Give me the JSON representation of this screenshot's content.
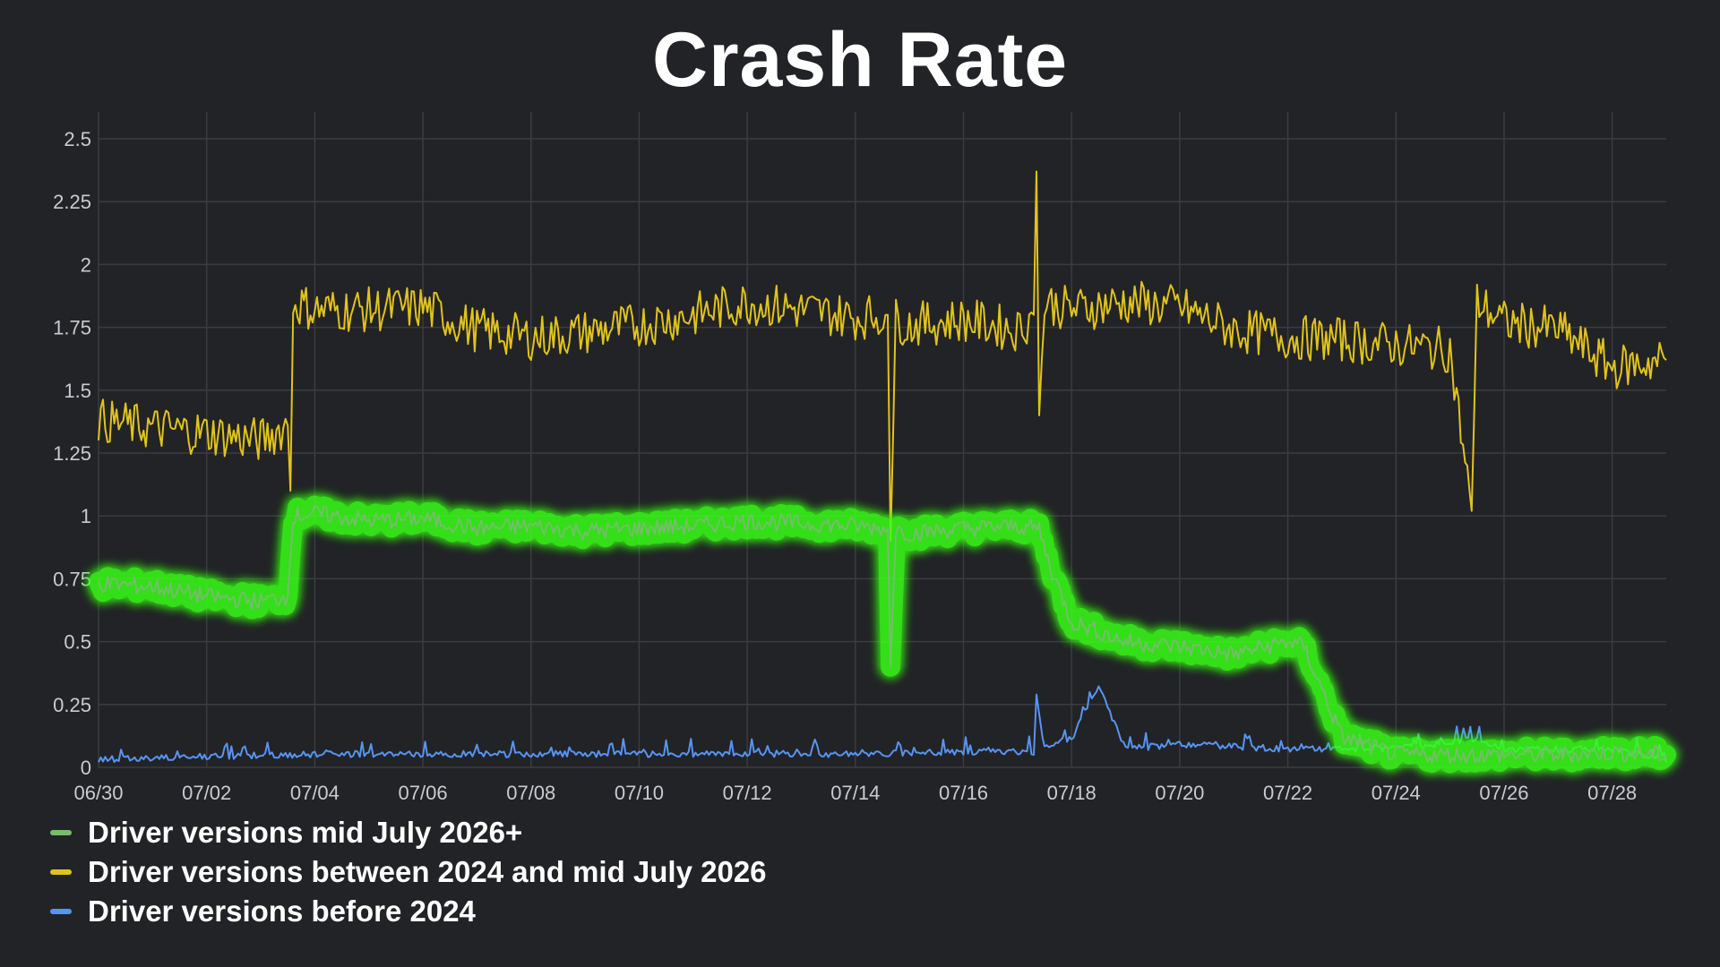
{
  "title": "Crash Rate",
  "chart_data": {
    "type": "line",
    "title": "Crash Rate",
    "xlabel": "",
    "ylabel": "",
    "ylim": [
      0,
      2.5
    ],
    "yticks": [
      "0",
      "0.25",
      "0.5",
      "0.75",
      "1",
      "1.25",
      "1.5",
      "1.75",
      "2",
      "2.25",
      "2.5"
    ],
    "xlim": [
      "2025-06-30",
      "2025-07-29"
    ],
    "xticks": [
      "06/30",
      "07/02",
      "07/04",
      "07/06",
      "07/08",
      "07/10",
      "07/12",
      "07/14",
      "07/16",
      "07/18",
      "07/20",
      "07/22",
      "07/24",
      "07/26",
      "07/28"
    ],
    "grid": true,
    "legend_position": "bottom-left",
    "series": [
      {
        "name": "Driver versions mid July 2026+",
        "color": "#73bf69",
        "highlight": "#39ff14",
        "points": [
          [
            "06-30",
            0.73
          ],
          [
            "07-01",
            0.72
          ],
          [
            "07-02",
            0.68
          ],
          [
            "07-03",
            0.66
          ],
          [
            "07-03.5",
            0.68
          ],
          [
            "07-03.6",
            1.0
          ],
          [
            "07-04",
            1.01
          ],
          [
            "07-05",
            0.98
          ],
          [
            "07-06",
            0.99
          ],
          [
            "07-07",
            0.95
          ],
          [
            "07-08",
            0.96
          ],
          [
            "07-09",
            0.94
          ],
          [
            "07-10",
            0.95
          ],
          [
            "07-11",
            0.96
          ],
          [
            "07-12",
            0.98
          ],
          [
            "07-13",
            0.97
          ],
          [
            "07-14",
            0.96
          ],
          [
            "07-14.6",
            0.95
          ],
          [
            "07-14.65",
            0.4
          ],
          [
            "07-14.75",
            0.95
          ],
          [
            "07-15",
            0.93
          ],
          [
            "07-16",
            0.95
          ],
          [
            "07-17",
            0.96
          ],
          [
            "07-17.4",
            0.95
          ],
          [
            "07-17.6",
            0.8
          ],
          [
            "07-18",
            0.58
          ],
          [
            "07-19",
            0.5
          ],
          [
            "07-20",
            0.48
          ],
          [
            "07-21",
            0.45
          ],
          [
            "07-22",
            0.5
          ],
          [
            "07-22.3",
            0.48
          ],
          [
            "07-23",
            0.12
          ],
          [
            "07-24",
            0.05
          ],
          [
            "07-25",
            0.05
          ],
          [
            "07-26",
            0.05
          ],
          [
            "07-27",
            0.05
          ],
          [
            "07-28",
            0.06
          ],
          [
            "07-29",
            0.05
          ]
        ]
      },
      {
        "name": "Driver versions between 2024 and mid July 2026",
        "color": "#e0c31d",
        "points": [
          [
            "06-30",
            1.38
          ],
          [
            "07-01",
            1.35
          ],
          [
            "07-02",
            1.33
          ],
          [
            "07-03",
            1.3
          ],
          [
            "07-03.5",
            1.36
          ],
          [
            "07-03.55",
            1.1
          ],
          [
            "07-03.6",
            1.85
          ],
          [
            "07-04",
            1.82
          ],
          [
            "07-05",
            1.82
          ],
          [
            "07-06",
            1.83
          ],
          [
            "07-07",
            1.74
          ],
          [
            "07-08",
            1.71
          ],
          [
            "07-09",
            1.73
          ],
          [
            "07-10",
            1.76
          ],
          [
            "07-11",
            1.8
          ],
          [
            "07-12",
            1.85
          ],
          [
            "07-13",
            1.82
          ],
          [
            "07-14",
            1.79
          ],
          [
            "07-14.6",
            1.8
          ],
          [
            "07-14.65",
            0.9
          ],
          [
            "07-14.75",
            1.78
          ],
          [
            "07-15",
            1.76
          ],
          [
            "07-16",
            1.78
          ],
          [
            "07-17",
            1.74
          ],
          [
            "07-17.3",
            1.8
          ],
          [
            "07-17.35",
            2.37
          ],
          [
            "07-17.4",
            1.4
          ],
          [
            "07-17.5",
            1.85
          ],
          [
            "07-18",
            1.82
          ],
          [
            "07-19",
            1.85
          ],
          [
            "07-20",
            1.83
          ],
          [
            "07-21",
            1.74
          ],
          [
            "07-22",
            1.71
          ],
          [
            "07-23",
            1.7
          ],
          [
            "07-24",
            1.68
          ],
          [
            "07-25",
            1.66
          ],
          [
            "07-25.4",
            1.02
          ],
          [
            "07-25.5",
            1.85
          ],
          [
            "07-26",
            1.77
          ],
          [
            "07-27",
            1.74
          ],
          [
            "07-28",
            1.59
          ],
          [
            "07-29",
            1.62
          ]
        ]
      },
      {
        "name": "Driver versions before 2024",
        "color": "#5794f2",
        "points": [
          [
            "06-30",
            0.02
          ],
          [
            "07-02",
            0.03
          ],
          [
            "07-04",
            0.04
          ],
          [
            "07-06",
            0.04
          ],
          [
            "07-08",
            0.04
          ],
          [
            "07-10",
            0.04
          ],
          [
            "07-12",
            0.04
          ],
          [
            "07-14",
            0.04
          ],
          [
            "07-16",
            0.05
          ],
          [
            "07-17.3",
            0.05
          ],
          [
            "07-17.35",
            0.29
          ],
          [
            "07-17.5",
            0.06
          ],
          [
            "07-18",
            0.1
          ],
          [
            "07-18.5",
            0.31
          ],
          [
            "07-19",
            0.06
          ],
          [
            "07-20",
            0.08
          ],
          [
            "07-22",
            0.06
          ],
          [
            "07-24",
            0.06
          ],
          [
            "07-25.5",
            0.1
          ],
          [
            "07-26",
            0.06
          ],
          [
            "07-28",
            0.06
          ],
          [
            "07-29",
            0.02
          ]
        ]
      }
    ]
  }
}
